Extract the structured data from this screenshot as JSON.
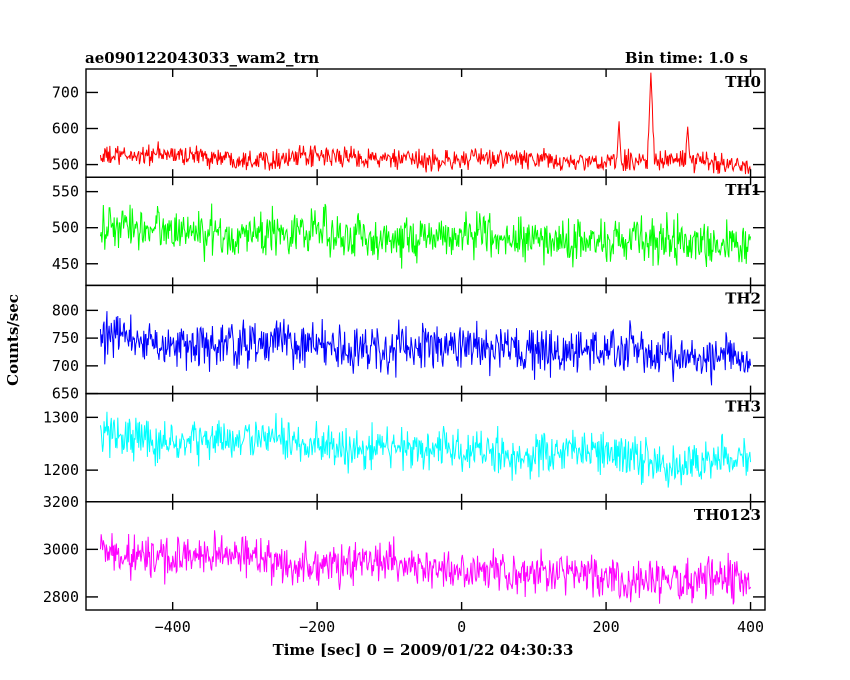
{
  "header": {
    "left_title": "ae090122043033_wam2_trn",
    "right_title": "Bin time: 1.0 s"
  },
  "chart_data": {
    "type": "line",
    "title": "ae090122043033_wam2_trn",
    "subtitle": "Bin time: 1.0 s",
    "xlabel": "Time [sec] 0 = 2009/01/22 04:30:33",
    "ylabel": "Counts/sec",
    "xlim": [
      -520,
      420
    ],
    "x_range": [
      -500,
      400
    ],
    "x_step": 1,
    "x_ticks": [
      -400,
      -200,
      0,
      200,
      400
    ],
    "x_tick_labels": [
      "−400",
      "−200",
      "0",
      "200",
      "400"
    ],
    "grid": false,
    "panels": [
      {
        "name": "TH0",
        "color": "#ff0000",
        "ylim": [
          465,
          765
        ],
        "y_ticks": [
          500,
          600,
          700
        ],
        "y_tick_labels": [
          "500",
          "600",
          "700"
        ],
        "baseline": {
          "start": 525,
          "end": 505
        },
        "noise_amplitude": 30,
        "features": [
          {
            "x": 262,
            "peak": 755,
            "width": 4
          },
          {
            "x": 218,
            "peak": 620,
            "width": 2
          },
          {
            "x": 313,
            "peak": 605,
            "width": 2
          }
        ]
      },
      {
        "name": "TH1",
        "color": "#00ff00",
        "ylim": [
          420,
          570
        ],
        "y_ticks": [
          450,
          500,
          550
        ],
        "y_tick_labels": [
          "450",
          "500",
          "550"
        ],
        "baseline": {
          "start": 497,
          "end": 478
        },
        "noise_amplitude": 32,
        "features": []
      },
      {
        "name": "TH2",
        "color": "#0000ff",
        "ylim": [
          650,
          845
        ],
        "y_ticks": [
          650,
          700,
          750,
          800
        ],
        "y_tick_labels": [
          "650",
          "700",
          "750",
          "800"
        ],
        "baseline": {
          "start": 745,
          "end": 718
        },
        "noise_amplitude": 42,
        "features": []
      },
      {
        "name": "TH3",
        "color": "#00ffff",
        "ylim": [
          1140,
          1345
        ],
        "y_ticks": [
          1200,
          1300
        ],
        "y_tick_labels": [
          "1200",
          "1300"
        ],
        "baseline": {
          "start": 1265,
          "end": 1215
        },
        "noise_amplitude": 42,
        "features": []
      },
      {
        "name": "TH0123",
        "color": "#ff00ff",
        "ylim": [
          2745,
          3200
        ],
        "y_ticks": [
          2800,
          3000,
          3200
        ],
        "y_tick_labels": [
          "2800",
          "3000",
          "3200"
        ],
        "baseline": {
          "start": 2990,
          "end": 2855
        },
        "noise_amplitude": 90,
        "features": []
      }
    ]
  }
}
